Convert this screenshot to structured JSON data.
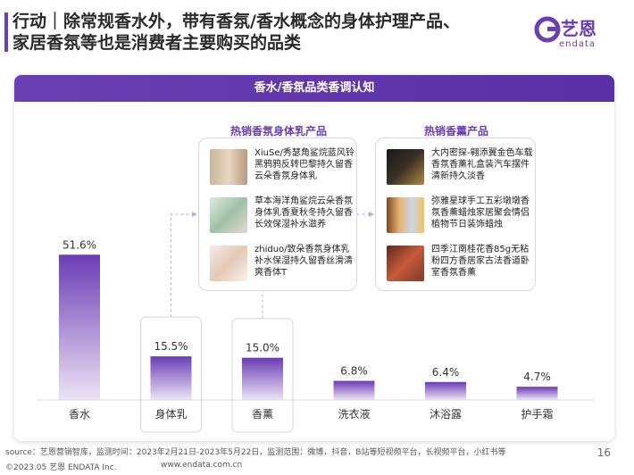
{
  "header": {
    "title_line1": "行动｜除常规香水外，带有香氛/香水概念的身体护理产品、",
    "title_line2": "家居香氛等也是消费者主要购买的品类"
  },
  "logo": {
    "cn": "艺恩",
    "en": "endata",
    "color": "#6a3fb0"
  },
  "card": {
    "title": "香水/香氛品类香调认知"
  },
  "chart_data": {
    "type": "bar",
    "categories": [
      "香水",
      "身体乳",
      "香薰",
      "洗衣液",
      "沐浴露",
      "护手霜"
    ],
    "values": [
      51.6,
      15.5,
      15.0,
      6.8,
      6.4,
      4.7
    ],
    "value_labels": [
      "51.6%",
      "15.5%",
      "15.0%",
      "6.8%",
      "6.4%",
      "4.7%"
    ],
    "unit": "%",
    "ylim": [
      0,
      60
    ],
    "highlighted": [
      "身体乳",
      "香薰"
    ],
    "bar_color_top": "#6b3cb4",
    "bar_color_bottom": "#ece4f6",
    "grid": false,
    "legend": "none"
  },
  "panels": {
    "body_lotion": {
      "title": "热销香氛身体乳产品",
      "items": [
        {
          "text": "XiuSe/秀瑟角鲨烷蓝风铃黑鸦鸦反转巴黎持久留香云朵香氛身体乳"
        },
        {
          "text": "草本海洋角鲨烷云朵香氛身体乳香夏秋冬持久留香长效保湿补水滋养"
        },
        {
          "text": "zhiduo/致朵香氛身体乳补水保湿持久留香丝滑清爽香体T"
        }
      ]
    },
    "aroma": {
      "title": "热销香薰产品",
      "items": [
        {
          "text": "大内密探-翱添翼金色车载香氛香薰礼盒装汽车摆件清新持久淡香"
        },
        {
          "text": "弥雅星球手工五彩墩墩香氛香薰蜡烛家居聚会情侣植物节日装饰蜡烛"
        },
        {
          "text": "四季江南桂花香85g无粘粉四方香居家古法香道卧室香氛香薰"
        }
      ]
    }
  },
  "footer": {
    "source": "source：艺恩营销智库，监测时间：2023年2月21日-2023年5月22日，监测范围：微博，抖音，B站等短视频平台，长视频平台，小红书等",
    "copyright": "©2023.05 艺恩 ENDATA Inc.",
    "url": "www.endata.com.cn",
    "page": "16"
  }
}
